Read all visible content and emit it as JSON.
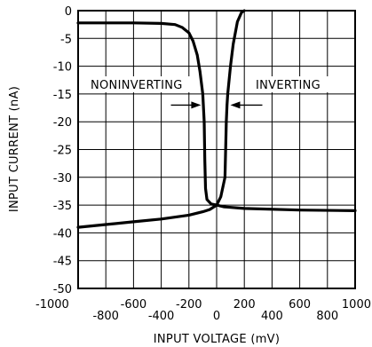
{
  "chart_data": {
    "type": "line",
    "title": "",
    "xlabel": "INPUT VOLTAGE (mV)",
    "ylabel": "INPUT CURRENT (nA)",
    "xlim": [
      -1000,
      1000
    ],
    "ylim": [
      -50,
      0
    ],
    "grid": true,
    "x_ticks": [
      -1000,
      -800,
      -600,
      -400,
      -200,
      0,
      200,
      400,
      600,
      800,
      1000
    ],
    "x_tick_labels": [
      "-1000",
      "-800",
      "-600",
      "-400",
      "-200",
      "0",
      "200",
      "400",
      "600",
      "800",
      "1000"
    ],
    "y_ticks": [
      0,
      -5,
      -10,
      -15,
      -20,
      -25,
      -30,
      -35,
      -40,
      -45,
      -50
    ],
    "y_tick_labels": [
      "0",
      "-5",
      "-10",
      "-15",
      "-20",
      "-25",
      "-30",
      "-35",
      "-40",
      "-45",
      "-50"
    ],
    "series": [
      {
        "name": "NONINVERTING",
        "points": [
          [
            -1000,
            -2.2
          ],
          [
            -600,
            -2.2
          ],
          [
            -400,
            -2.3
          ],
          [
            -300,
            -2.5
          ],
          [
            -250,
            -3.0
          ],
          [
            -200,
            -4.0
          ],
          [
            -170,
            -5.5
          ],
          [
            -140,
            -8.0
          ],
          [
            -120,
            -11.0
          ],
          [
            -100,
            -15.0
          ],
          [
            -90,
            -20.0
          ],
          [
            -85,
            -27.0
          ],
          [
            -80,
            -32.0
          ],
          [
            -70,
            -34.0
          ],
          [
            -40,
            -34.8
          ],
          [
            0,
            -35.0
          ],
          [
            50,
            -35.3
          ],
          [
            200,
            -35.6
          ],
          [
            600,
            -35.9
          ],
          [
            1000,
            -36.0
          ]
        ]
      },
      {
        "name": "INVERTING",
        "points": [
          [
            -1000,
            -39.0
          ],
          [
            -800,
            -38.5
          ],
          [
            -600,
            -38.0
          ],
          [
            -400,
            -37.5
          ],
          [
            -200,
            -36.8
          ],
          [
            -100,
            -36.2
          ],
          [
            -50,
            -35.8
          ],
          [
            0,
            -35.0
          ],
          [
            30,
            -33.5
          ],
          [
            60,
            -30.0
          ],
          [
            70,
            -20.0
          ],
          [
            75,
            -17.0
          ],
          [
            80,
            -15.0
          ],
          [
            100,
            -10.0
          ],
          [
            120,
            -6.0
          ],
          [
            150,
            -2.0
          ],
          [
            180,
            -0.3
          ],
          [
            200,
            0.0
          ]
        ]
      }
    ],
    "annotations": [
      {
        "text": "NONINVERTING",
        "x": -660,
        "y": -12.5
      },
      {
        "text": "INVERTING",
        "x": 460,
        "y": -12.5
      }
    ]
  }
}
